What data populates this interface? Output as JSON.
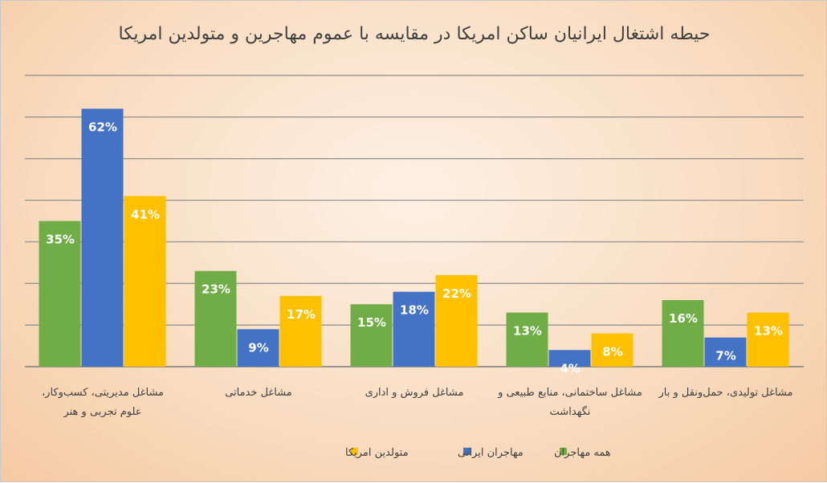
{
  "chart_data": {
    "type": "bar",
    "title": "حیطه اشتغال ایرانیان ساکن امریکا در مقایسه با عموم مهاجرین و متولدین امریکا",
    "categories": [
      [
        "مشاغل مدیریتی، کسب‌وکار،",
        "علوم تجربی و هنر"
      ],
      [
        "مشاغل خدماتی"
      ],
      [
        "مشاغل فروش و اداری"
      ],
      [
        "مشاغل ساختمانی، منابع طبیعی و",
        "نگهداشت"
      ],
      [
        "مشاغل تولیدی، حمل‌ونقل و بار"
      ]
    ],
    "series": [
      {
        "name": "همه مهاجران",
        "color": "#70ad47",
        "values": [
          35,
          23,
          15,
          13,
          16
        ],
        "labels": [
          "35%",
          "23%",
          "15%",
          "13%",
          "16%"
        ]
      },
      {
        "name": "مهاجران ایرانی",
        "color": "#4472c4",
        "values": [
          62,
          9,
          18,
          4,
          7
        ],
        "labels": [
          "62%",
          "9%",
          "18%",
          "4%",
          "7%"
        ]
      },
      {
        "name": "متولدین امریکا",
        "color": "#ffc000",
        "values": [
          41,
          17,
          22,
          8,
          13
        ],
        "labels": [
          "41%",
          "17%",
          "22%",
          "8%",
          "13%"
        ]
      }
    ],
    "ylim": [
      0,
      70
    ],
    "grid_step": 10,
    "grid": true,
    "legend_position": "bottom"
  }
}
